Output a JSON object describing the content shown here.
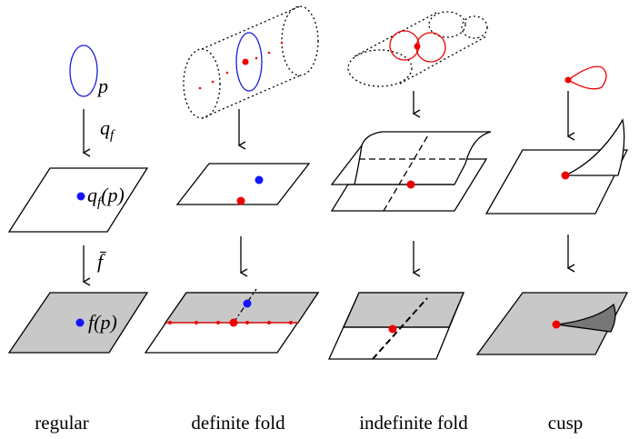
{
  "labels": {
    "p": "p",
    "qf": {
      "main": "q",
      "sub": "f"
    },
    "qfp": {
      "main": "q",
      "sub": "f",
      "arg": "(p)"
    },
    "fbar": "f̄",
    "fp": "f(p)"
  },
  "columns": [
    "regular",
    "definite fold",
    "indefinite fold",
    "cusp"
  ]
}
